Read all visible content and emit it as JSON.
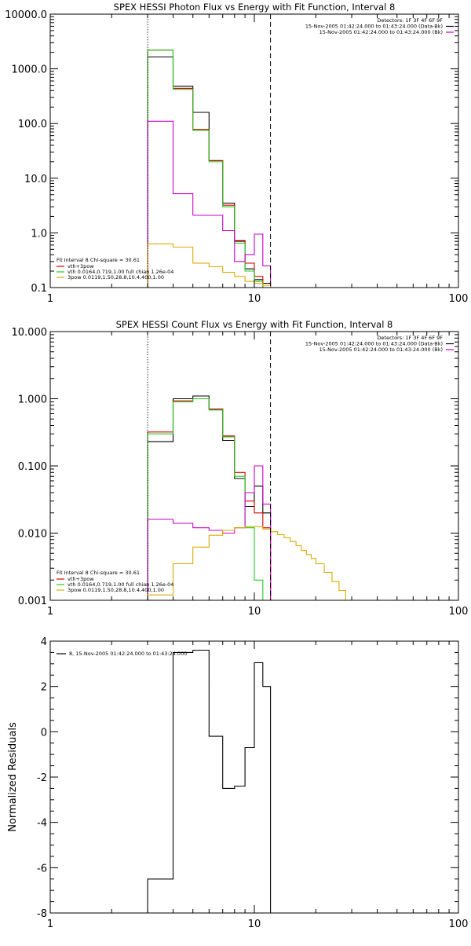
{
  "chart_data": [
    {
      "type": "line",
      "title": "SPEX HESSI Photon Flux vs Energy with Fit Function, Interval 8",
      "xscale": "log",
      "yscale": "log",
      "xlim": [
        1,
        100
      ],
      "ylim": [
        0.1,
        10000
      ],
      "x_ticks": [
        {
          "value": 1,
          "label": "1"
        },
        {
          "value": 10,
          "label": "10"
        },
        {
          "value": 100,
          "label": "100"
        }
      ],
      "y_ticks": [
        {
          "value": 0.1,
          "label": "0.1"
        },
        {
          "value": 1,
          "label": "1.0"
        },
        {
          "value": 10,
          "label": "10.0"
        },
        {
          "value": 100,
          "label": "100.0"
        },
        {
          "value": 1000,
          "label": "1000.0"
        },
        {
          "value": 10000,
          "label": "10000.0"
        }
      ],
      "header_lines": [
        "Detectors: 1F 3F 4F 6F 9F",
        "15-Nov-2005 01:42:24.000 to 01:43:24.000 (Data-Bk)",
        "15-Nov-2005 01:42:24.000 to 01:43:24.000 (Bk)"
      ],
      "header_colors": [
        "",
        "#000000",
        "#cc00cc"
      ],
      "fit_label": "Fit Interval 8   Chi-square = 30.61",
      "vlines": [
        {
          "x": 3.0,
          "style": "dotted"
        },
        {
          "x": 12.0,
          "style": "dashed"
        }
      ],
      "series": [
        {
          "name": "",
          "color": "#000000",
          "edges": [
            3,
            4,
            5,
            6,
            7,
            8,
            9,
            10,
            11,
            12
          ],
          "values": [
            1650,
            480,
            160,
            21,
            3.5,
            0.72,
            0.22,
            0.14,
            0.12
          ]
        },
        {
          "name": "vth+3pow",
          "color": "#dd0000",
          "edges": [
            3,
            4,
            5,
            6,
            7,
            8,
            9,
            10,
            11,
            12
          ],
          "values": [
            2200,
            440,
            78,
            21,
            3.2,
            0.7,
            0.28,
            0.16,
            0.1
          ]
        },
        {
          "name": "vth 0.0164,0.719,1.00  full chian 1.26e-04",
          "color": "#22cc22",
          "edges": [
            3,
            4,
            5,
            6,
            7,
            8,
            9,
            10,
            11,
            12
          ],
          "values": [
            2200,
            420,
            75,
            20,
            3.0,
            0.65,
            0.2,
            0.13,
            0.1
          ]
        },
        {
          "name": "",
          "color": "#cc00cc",
          "edges": [
            3,
            4,
            5,
            6,
            7,
            8,
            9,
            10,
            11,
            12
          ],
          "values": [
            110,
            5.2,
            2.1,
            2.1,
            1.1,
            0.3,
            0.4,
            0.95,
            0.25
          ]
        },
        {
          "name": "3pow 0.0119,1.50,28.8,10.4,400,1.00",
          "color": "#ddaa00",
          "edges": [
            3,
            4,
            5,
            6,
            7,
            8,
            9,
            10,
            11,
            12
          ],
          "values": [
            0.63,
            0.55,
            0.28,
            0.24,
            0.19,
            0.16,
            0.13,
            0.12,
            0.11
          ]
        }
      ]
    },
    {
      "type": "line",
      "title": "SPEX HESSI Count Flux vs Energy with Fit Function, Interval 8",
      "xscale": "log",
      "yscale": "log",
      "xlim": [
        1,
        100
      ],
      "ylim": [
        0.001,
        10
      ],
      "x_ticks": [
        {
          "value": 1,
          "label": "1"
        },
        {
          "value": 10,
          "label": "10"
        },
        {
          "value": 100,
          "label": "100"
        }
      ],
      "y_ticks": [
        {
          "value": 0.001,
          "label": "0.001"
        },
        {
          "value": 0.01,
          "label": "0.010"
        },
        {
          "value": 0.1,
          "label": "0.100"
        },
        {
          "value": 1,
          "label": "1.000"
        },
        {
          "value": 10,
          "label": "10.000"
        }
      ],
      "header_lines": [
        "Detectors: 1F 3F 4F 6F 9F",
        "15-Nov-2005 01:42:24.000 to 01:43:24.000 (Data-Bk)",
        "15-Nov-2005 01:42:24.000 to 01:43:24.000 (Bk)"
      ],
      "header_colors": [
        "",
        "#000000",
        "#cc00cc"
      ],
      "fit_label": "Fit Interval 8   Chi-square = 30.61",
      "vlines": [
        {
          "x": 3.0,
          "style": "dotted"
        },
        {
          "x": 12.0,
          "style": "dashed"
        }
      ],
      "series": [
        {
          "name": "",
          "color": "#000000",
          "edges": [
            3,
            4,
            5,
            6,
            7,
            8,
            9,
            10,
            11,
            12
          ],
          "values": [
            0.23,
            1.0,
            1.1,
            0.7,
            0.24,
            0.065,
            0.025,
            0.05,
            0.02
          ]
        },
        {
          "name": "vth+3pow",
          "color": "#dd0000",
          "edges": [
            3,
            4,
            5,
            6,
            7,
            8,
            9,
            10,
            11,
            12
          ],
          "values": [
            0.32,
            0.93,
            1.0,
            0.7,
            0.28,
            0.08,
            0.03,
            0.02,
            0.012
          ]
        },
        {
          "name": "vth 0.0164,0.719,1.00  full chian 1.26e-04",
          "color": "#22cc22",
          "edges": [
            3,
            4,
            5,
            6,
            7,
            8,
            9,
            10,
            11
          ],
          "values": [
            0.3,
            0.9,
            1.0,
            0.68,
            0.27,
            0.07,
            0.012,
            0.002
          ]
        },
        {
          "name": "",
          "color": "#cc00cc",
          "edges": [
            3,
            4,
            5,
            6,
            7,
            8,
            9,
            10,
            11,
            12
          ],
          "values": [
            0.016,
            0.014,
            0.012,
            0.011,
            0.01,
            0.012,
            0.04,
            0.1,
            0.027
          ]
        },
        {
          "name": "3pow 0.0119,1.50,28.8,10.4,400,1.00",
          "color": "#ddaa00",
          "edges": [
            3,
            4,
            5,
            6,
            7,
            8,
            9,
            10,
            11,
            12,
            13,
            14,
            15,
            16,
            17,
            18,
            19,
            20,
            22,
            24,
            26,
            28,
            30
          ],
          "values": [
            0.0012,
            0.0035,
            0.0062,
            0.0093,
            0.011,
            0.012,
            0.0125,
            0.0125,
            0.0115,
            0.0105,
            0.0095,
            0.0085,
            0.0075,
            0.0065,
            0.0055,
            0.0048,
            0.0042,
            0.0035,
            0.0026,
            0.0019,
            0.0014,
            0.001
          ]
        }
      ]
    },
    {
      "type": "line",
      "title": "",
      "xscale": "log",
      "yscale": "linear",
      "xlim": [
        1,
        100
      ],
      "ylim": [
        -8,
        4
      ],
      "ylabel": "Normalized Residuals",
      "x_ticks": [
        {
          "value": 1,
          "label": "1"
        },
        {
          "value": 10,
          "label": "10"
        },
        {
          "value": 100,
          "label": "100"
        }
      ],
      "y_ticks": [
        {
          "value": -8,
          "label": "-8"
        },
        {
          "value": -6,
          "label": "-6"
        },
        {
          "value": -4,
          "label": "-4"
        },
        {
          "value": -2,
          "label": "-2"
        },
        {
          "value": 0,
          "label": "0"
        },
        {
          "value": 2,
          "label": "2"
        },
        {
          "value": 4,
          "label": "4"
        }
      ],
      "legend": "8, 15-Nov-2005 01:42:24.000 to 01:43:24.000",
      "series": [
        {
          "name": "",
          "color": "#000000",
          "edges": [
            3,
            4,
            5,
            6,
            7,
            8,
            9,
            10,
            11,
            12
          ],
          "values": [
            -6.5,
            3.5,
            3.6,
            -0.2,
            -2.5,
            -2.4,
            -0.7,
            3.05,
            2.0
          ],
          "start_value": -8,
          "end_value": -8
        }
      ]
    }
  ]
}
